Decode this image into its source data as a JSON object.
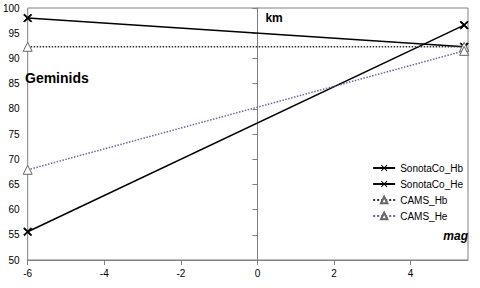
{
  "chart_data": {
    "type": "line",
    "title": "Geminids",
    "x_label": "mag",
    "y_label": "km",
    "x": [
      -6,
      5.4
    ],
    "xlim": [
      -6,
      5.5
    ],
    "xticks": [
      -6,
      -4,
      -2,
      0,
      2,
      4
    ],
    "ylim": [
      50,
      100
    ],
    "yticks": [
      50,
      55,
      60,
      65,
      70,
      75,
      80,
      85,
      90,
      95,
      100
    ],
    "grid": false,
    "legend": "right",
    "series": [
      {
        "name": "SonotaCo_Hb",
        "color": "#000000",
        "marker": "x",
        "line_style": "solid",
        "values": [
          98,
          92.3
        ]
      },
      {
        "name": "SonotaCo_He",
        "color": "#000000",
        "marker": "x",
        "line_style": "solid",
        "values": [
          55.6,
          96.6
        ]
      },
      {
        "name": "CAMS_Hb",
        "color": "#333333",
        "marker": "triangle",
        "line_style": "dotted",
        "values": [
          92.3,
          92.3
        ]
      },
      {
        "name": "CAMS_He",
        "color": "#7060b0",
        "marker": "triangle",
        "line_style": "dotted",
        "values": [
          67.9,
          91.5
        ]
      }
    ]
  }
}
